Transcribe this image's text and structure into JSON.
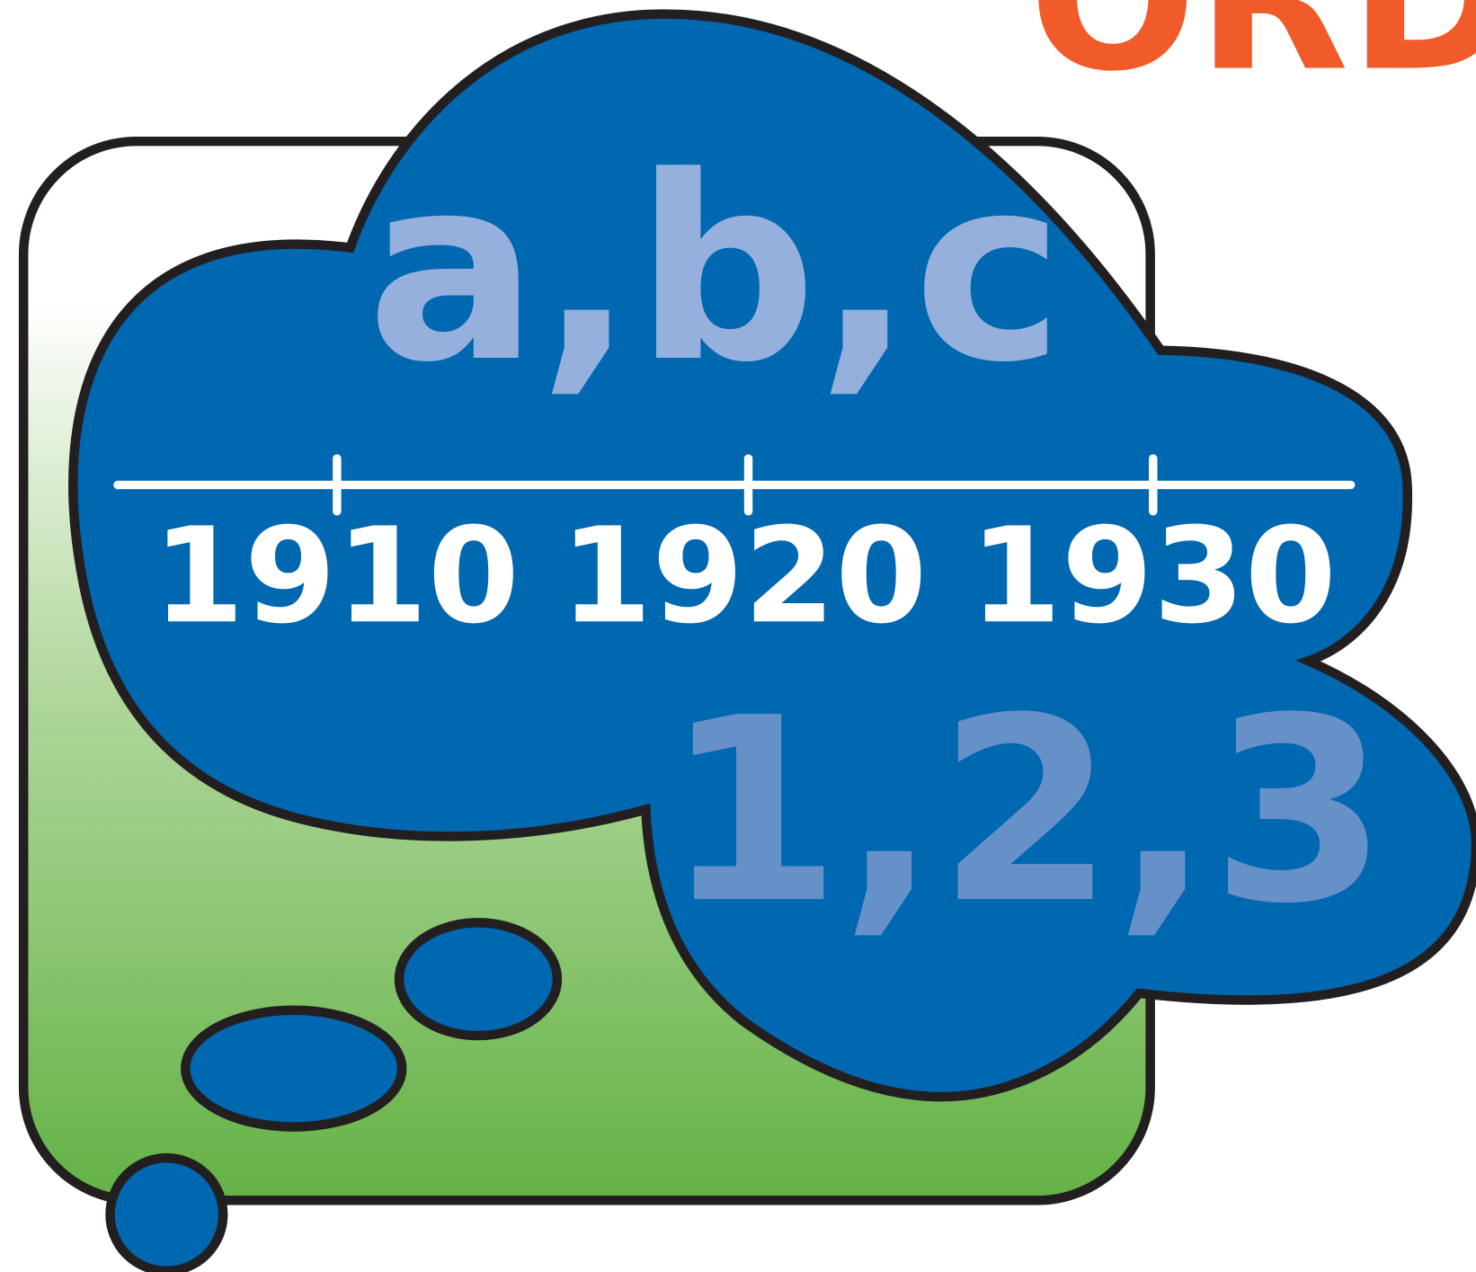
{
  "corner_text": "ORD",
  "letters": "a,b,c",
  "timeline": {
    "labels": [
      "1910",
      "1920",
      "1930"
    ]
  },
  "numbers": "1,2,3"
}
